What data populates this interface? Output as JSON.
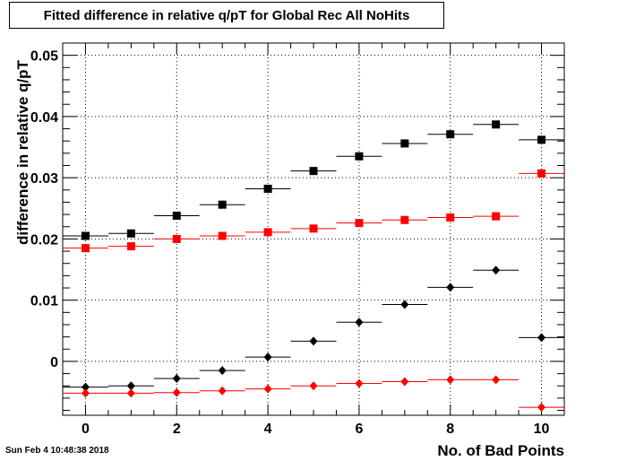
{
  "chart_data": {
    "type": "scatter",
    "title": "Fitted difference in relative q/pT for Global Rec All NoHits",
    "xlabel": "No. of Bad Points",
    "ylabel": "difference in relative q/pT",
    "xlim": [
      -0.5,
      10.5
    ],
    "ylim": [
      -0.0088,
      0.052
    ],
    "x_ticks": [
      "0",
      "2",
      "4",
      "6",
      "8",
      "10"
    ],
    "y_ticks": [
      "0",
      "0.01",
      "0.02",
      "0.03",
      "0.04",
      "0.05"
    ],
    "grid": true,
    "x": [
      0,
      1,
      2,
      3,
      4,
      5,
      6,
      7,
      8,
      9,
      10
    ],
    "series": [
      {
        "marker": "square",
        "color": "#000000",
        "values": [
          0.0205,
          0.0209,
          0.0238,
          0.0256,
          0.0282,
          0.0311,
          0.0335,
          0.0356,
          0.0371,
          0.0387,
          0.0362
        ]
      },
      {
        "marker": "square",
        "color": "#ff0000",
        "values": [
          0.0185,
          0.0188,
          0.02,
          0.0205,
          0.0211,
          0.0217,
          0.0226,
          0.0231,
          0.0235,
          0.0237,
          0.0307
        ]
      },
      {
        "marker": "diamond",
        "color": "#000000",
        "values": [
          -0.0042,
          -0.004,
          -0.0028,
          -0.0015,
          0.0007,
          0.0033,
          0.0064,
          0.0093,
          0.0121,
          0.0149,
          0.0039
        ]
      },
      {
        "marker": "diamond",
        "color": "#ff0000",
        "values": [
          -0.0052,
          -0.0052,
          -0.0051,
          -0.0048,
          -0.0045,
          -0.004,
          -0.0036,
          -0.0033,
          -0.003,
          -0.003,
          -0.0075
        ]
      }
    ]
  },
  "footer": {
    "timestamp": "Sun Feb  4 10:48:38 2018"
  }
}
